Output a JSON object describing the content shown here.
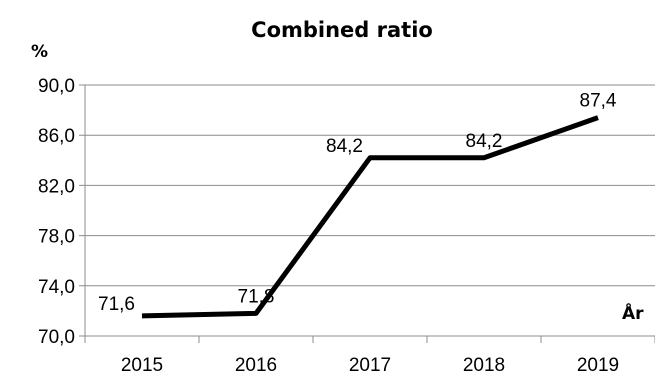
{
  "chart_data": {
    "type": "line",
    "title": "Combined ratio",
    "ylabel": "%",
    "xlabel": "År",
    "categories": [
      "2015",
      "2016",
      "2017",
      "2018",
      "2019"
    ],
    "series": [
      {
        "values": [
          71.6,
          71.8,
          84.2,
          84.2,
          87.4
        ]
      }
    ],
    "data_labels": [
      "71,6",
      "71,8",
      "84,2",
      "84,2",
      "87,4"
    ],
    "y_ticks": [
      "70,0",
      "74,0",
      "78,0",
      "82,0",
      "86,0",
      "90,0"
    ],
    "ylim": [
      70,
      90
    ],
    "grid": true,
    "legend": "none",
    "colors": {
      "line": "#000000",
      "grid": "#8c8c8c"
    }
  }
}
